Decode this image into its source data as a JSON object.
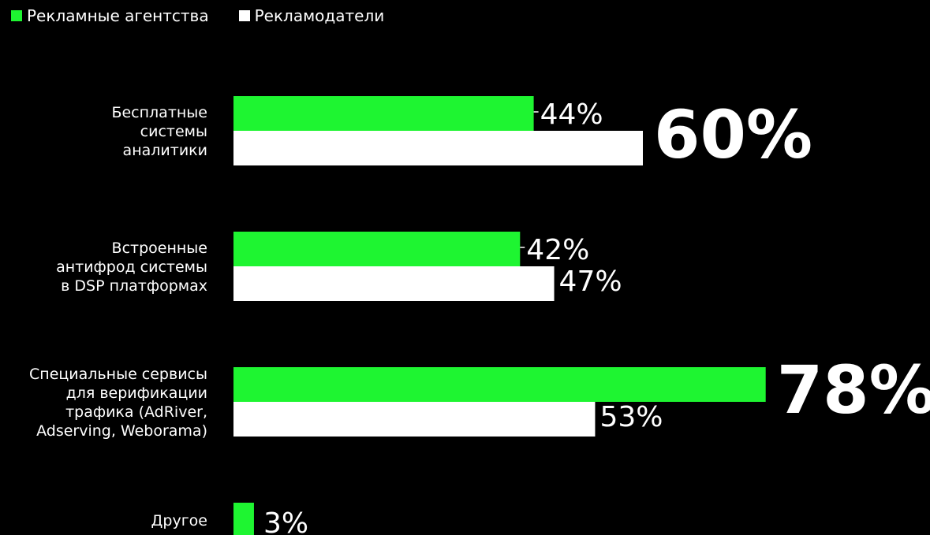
{
  "chart_data": {
    "type": "bar",
    "orientation": "horizontal",
    "categories": [
      [
        "Бесплатные",
        "системы",
        "аналитики"
      ],
      [
        "Встроенные",
        "антифрод системы",
        "в DSP платформах"
      ],
      [
        "Специальные сервисы",
        "для верификации",
        "трафика (AdRiver,",
        "Adserving, Weborama)"
      ],
      [
        "Другое"
      ]
    ],
    "series": [
      {
        "name": "Рекламные агентства",
        "color": "#1ef531",
        "values": [
          44,
          42,
          78,
          3
        ],
        "labels": [
          "44%",
          "42%",
          "78%",
          "3%"
        ]
      },
      {
        "name": "Рекламодатели",
        "color": "#ffffff",
        "values": [
          60,
          47,
          53,
          null
        ],
        "labels": [
          "60%",
          "47%",
          "53%",
          ""
        ]
      }
    ],
    "highlighted": [
      {
        "series": 1,
        "category": 0
      },
      {
        "series": 0,
        "category": 2
      }
    ],
    "xlim": [
      0,
      100
    ],
    "legend": "top-left",
    "grid": false,
    "title": "",
    "xlabel": "",
    "ylabel": ""
  }
}
